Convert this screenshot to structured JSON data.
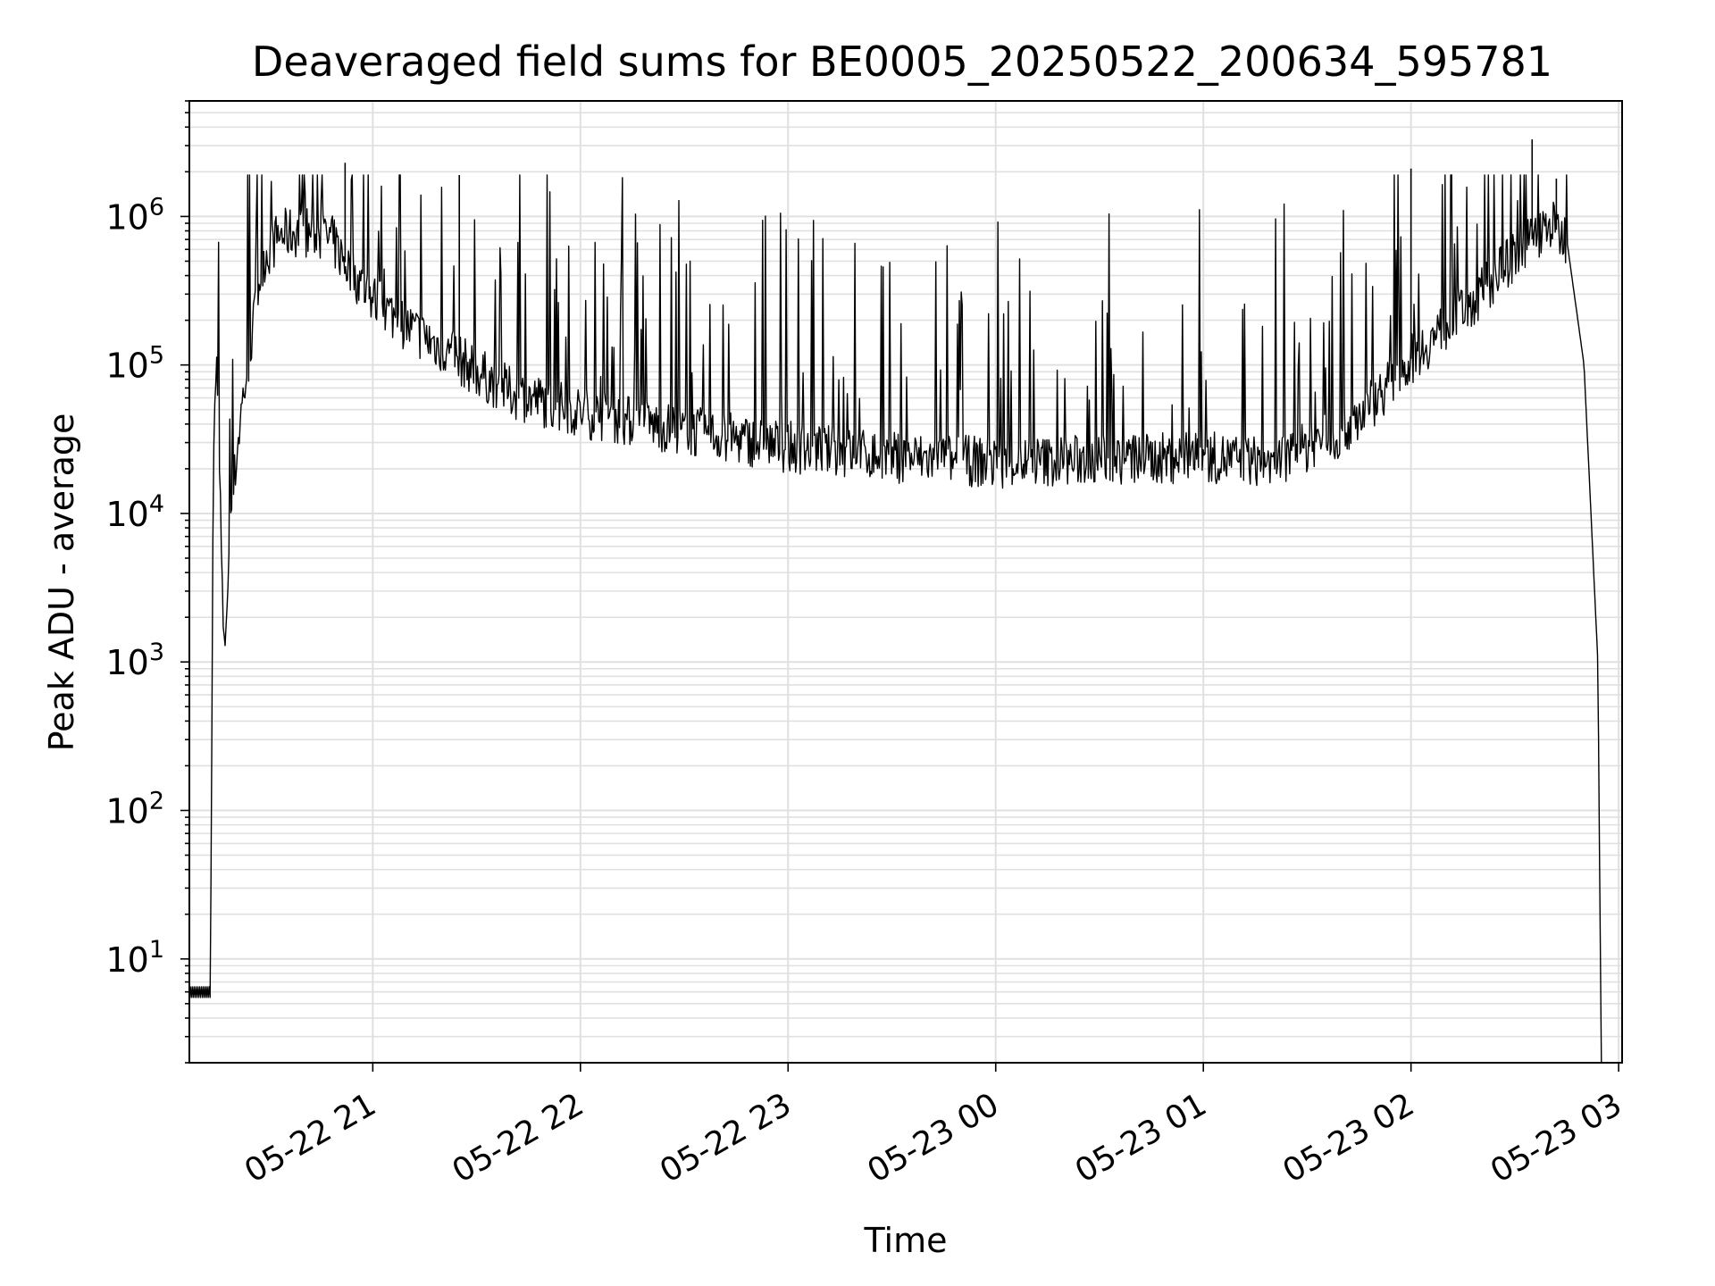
{
  "chart_data": {
    "type": "line",
    "title": "Deaveraged field sums for BE0005_20250522_200634_595781",
    "xlabel": "Time",
    "ylabel": "Peak ADU - average",
    "yscale": "log",
    "ylim": [
      2,
      6000000
    ],
    "xlim": [
      "2025-05-22T20:07",
      "2025-05-23T03:01"
    ],
    "grid": "major and minor, light gray",
    "line_color": "#000000",
    "x_ticks": [
      {
        "t": "2025-05-22T21:00",
        "label": "05-22 21"
      },
      {
        "t": "2025-05-22T22:00",
        "label": "05-22 22"
      },
      {
        "t": "2025-05-22T23:00",
        "label": "05-22 23"
      },
      {
        "t": "2025-05-23T00:00",
        "label": "05-23 00"
      },
      {
        "t": "2025-05-23T01:00",
        "label": "05-23 01"
      },
      {
        "t": "2025-05-23T02:00",
        "label": "05-23 02"
      },
      {
        "t": "2025-05-23T03:00",
        "label": "05-23 03"
      }
    ],
    "y_ticks": [
      {
        "value": 10,
        "base": "10",
        "exp": "1"
      },
      {
        "value": 100,
        "base": "10",
        "exp": "2"
      },
      {
        "value": 1000,
        "base": "10",
        "exp": "3"
      },
      {
        "value": 10000,
        "base": "10",
        "exp": "4"
      },
      {
        "value": 100000,
        "base": "10",
        "exp": "5"
      },
      {
        "value": 1000000,
        "base": "10",
        "exp": "6"
      }
    ],
    "baseline": [
      {
        "t": "2025-05-22T20:07",
        "value": 5.5
      },
      {
        "t": "2025-05-22T20:13",
        "value": 5.5
      },
      {
        "t": "2025-05-22T20:14",
        "value": 30000
      },
      {
        "t": "2025-05-22T20:15",
        "value": 100000
      },
      {
        "t": "2025-05-22T20:17",
        "value": 1000
      },
      {
        "t": "2025-05-22T20:19",
        "value": 10000
      },
      {
        "t": "2025-05-22T20:22",
        "value": 50000
      },
      {
        "t": "2025-05-22T20:25",
        "value": 150000
      },
      {
        "t": "2025-05-22T20:28",
        "value": 500000
      },
      {
        "t": "2025-05-22T20:33",
        "value": 750000
      },
      {
        "t": "2025-05-22T20:40",
        "value": 800000
      },
      {
        "t": "2025-05-22T20:48",
        "value": 700000
      },
      {
        "t": "2025-05-22T20:53",
        "value": 450000
      },
      {
        "t": "2025-05-22T21:00",
        "value": 280000
      },
      {
        "t": "2025-05-22T21:10",
        "value": 180000
      },
      {
        "t": "2025-05-22T21:20",
        "value": 130000
      },
      {
        "t": "2025-05-22T21:30",
        "value": 90000
      },
      {
        "t": "2025-05-22T21:40",
        "value": 65000
      },
      {
        "t": "2025-05-22T22:00",
        "value": 48000
      },
      {
        "t": "2025-05-22T22:30",
        "value": 36000
      },
      {
        "t": "2025-05-22T23:00",
        "value": 28000
      },
      {
        "t": "2025-05-22T23:30",
        "value": 24000
      },
      {
        "t": "2025-05-23T00:00",
        "value": 22000
      },
      {
        "t": "2025-05-23T00:30",
        "value": 23000
      },
      {
        "t": "2025-05-23T01:00",
        "value": 24000
      },
      {
        "t": "2025-05-23T01:20",
        "value": 22000
      },
      {
        "t": "2025-05-23T01:40",
        "value": 35000
      },
      {
        "t": "2025-05-23T01:50",
        "value": 60000
      },
      {
        "t": "2025-05-23T02:00",
        "value": 110000
      },
      {
        "t": "2025-05-23T02:10",
        "value": 180000
      },
      {
        "t": "2025-05-23T02:20",
        "value": 300000
      },
      {
        "t": "2025-05-23T02:30",
        "value": 550000
      },
      {
        "t": "2025-05-23T02:40",
        "value": 900000
      },
      {
        "t": "2025-05-23T02:45",
        "value": 700000
      },
      {
        "t": "2025-05-23T02:50",
        "value": 100000
      },
      {
        "t": "2025-05-23T02:52",
        "value": 10000
      },
      {
        "t": "2025-05-23T02:54",
        "value": 1000
      },
      {
        "t": "2025-05-23T02:55",
        "value": 2
      }
    ],
    "spikes": [
      {
        "t": "2025-05-22T20:52",
        "value": 2300000
      },
      {
        "t": "2025-05-22T21:25",
        "value": 1900000
      },
      {
        "t": "2025-05-23T02:00",
        "value": 2100000
      },
      {
        "t": "2025-05-23T02:35",
        "value": 3300000
      },
      {
        "t": "2025-05-23T02:42",
        "value": 1800000
      }
    ]
  }
}
